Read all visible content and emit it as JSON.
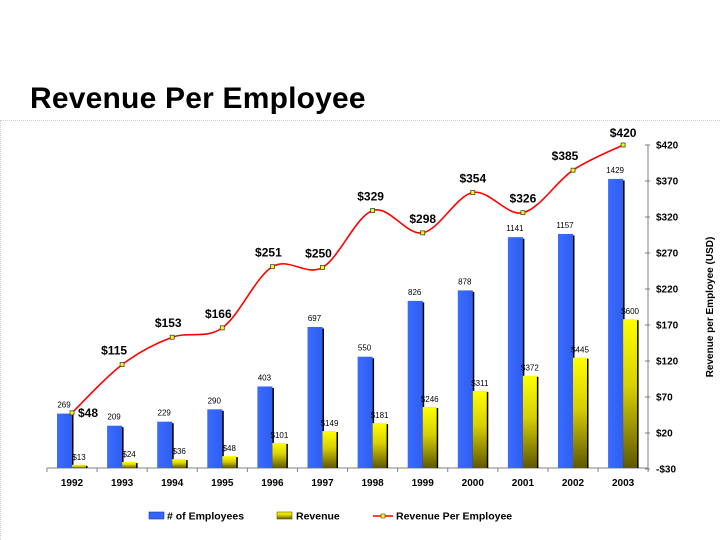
{
  "slide": {
    "title": "Revenue Per Employee"
  },
  "colors": {
    "employees": "#3366ff",
    "revenue_top": "#ffff00",
    "revenue_bottom": "#6b6400",
    "line": "#ff0000",
    "marker": "#ffff00"
  },
  "chart_data": {
    "type": "bar",
    "title": "Revenue Per Employee",
    "xlabel": "",
    "ylabel_right": "Revenue per Employee (USD)",
    "categories": [
      "1992",
      "1993",
      "1994",
      "1995",
      "1996",
      "1997",
      "1998",
      "1999",
      "2000",
      "2001",
      "2002",
      "2003"
    ],
    "series": [
      {
        "name": "# of Employees",
        "type": "bar",
        "values": [
          269,
          209,
          229,
          290,
          403,
          697,
          550,
          826,
          878,
          1141,
          1157,
          1429
        ],
        "labels": [
          "269",
          "209",
          "229",
          "290",
          "403",
          "697",
          "550",
          "826",
          "878",
          "1141",
          "1157",
          "1429"
        ]
      },
      {
        "name": "Revenue",
        "type": "bar",
        "values": [
          13,
          24,
          36,
          48,
          101,
          149,
          181,
          246,
          311,
          372,
          445,
          600
        ],
        "labels": [
          "$13",
          "$24",
          "$36",
          "$48",
          "$101",
          "$149",
          "$181",
          "$246",
          "$311",
          "$372",
          "$445",
          "$600"
        ]
      },
      {
        "name": "Revenue Per Employee",
        "type": "line",
        "axis": "right",
        "values": [
          48,
          115,
          153,
          166,
          251,
          250,
          329,
          298,
          354,
          326,
          385,
          420
        ],
        "labels": [
          "$48",
          "$115",
          "$153",
          "$166",
          "$251",
          "$250",
          "$329",
          "$298",
          "$354",
          "$326",
          "$385",
          "$420"
        ]
      }
    ],
    "right_axis": {
      "ylim": [
        -30,
        420
      ],
      "ticks": [
        420,
        370,
        320,
        270,
        220,
        170,
        120,
        70,
        20,
        -30
      ],
      "tick_labels": [
        "$420",
        "$370",
        "$320",
        "$270",
        "$220",
        "$170",
        "$120",
        "$70",
        "$20",
        "-$30"
      ]
    },
    "grid": false,
    "legend": {
      "placement": "bottom",
      "entries": [
        "# of Employees",
        "Revenue",
        "Revenue Per Employee"
      ]
    }
  }
}
